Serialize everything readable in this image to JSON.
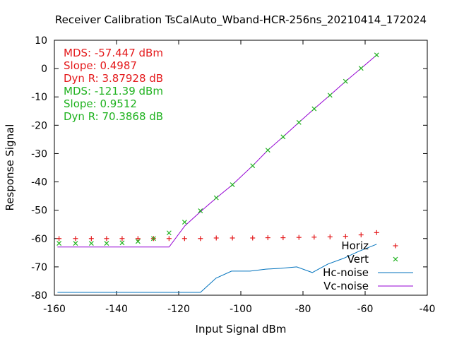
{
  "chart_data": {
    "type": "scatter",
    "title": "Receiver Calibration TsCalAuto_Wband-HCR-256ns_20210414_172024",
    "xlabel": "Input Signal dBm",
    "ylabel": "Response Signal",
    "xlim": [
      -160,
      -40
    ],
    "ylim": [
      -80,
      10
    ],
    "xticks": [
      -160,
      -140,
      -120,
      -100,
      -80,
      -60,
      -40
    ],
    "yticks": [
      -80,
      -70,
      -60,
      -50,
      -40,
      -30,
      -20,
      -10,
      0,
      10
    ],
    "grid": false,
    "legend_position": "bottom-right",
    "annotations": [
      {
        "text": "MDS: -57.447 dBm",
        "color": "#e41a1c"
      },
      {
        "text": "Slope: 0.4987",
        "color": "#e41a1c"
      },
      {
        "text": "Dyn R: 3.87928 dB",
        "color": "#e41a1c"
      },
      {
        "text": "MDS: -121.39 dBm",
        "color": "#1fb21f"
      },
      {
        "text": "Slope: 0.9512",
        "color": "#1fb21f"
      },
      {
        "text": "Dyn R: 70.3868 dB",
        "color": "#1fb21f"
      }
    ],
    "series": [
      {
        "name": "Horiz",
        "kind": "points",
        "marker": "plus",
        "color": "#e41a1c",
        "x": [
          -158.5,
          -153.2,
          -148.1,
          -143.2,
          -138.2,
          -133.1,
          -128.1,
          -123.1,
          -118.1,
          -113.0,
          -107.9,
          -102.7,
          -96.2,
          -91.3,
          -86.4,
          -81.3,
          -76.4,
          -71.3,
          -66.3,
          -61.3,
          -56.3
        ],
        "y": [
          -60.0,
          -60.0,
          -60.0,
          -60.0,
          -60.0,
          -60.0,
          -60.0,
          -60.0,
          -60.0,
          -60.0,
          -59.8,
          -59.8,
          -59.8,
          -59.7,
          -59.7,
          -59.6,
          -59.5,
          -59.4,
          -59.2,
          -58.7,
          -57.9
        ]
      },
      {
        "name": "Vert",
        "kind": "points",
        "marker": "cross",
        "color": "#1fb21f",
        "x": [
          -158.5,
          -153.2,
          -148.1,
          -143.2,
          -138.2,
          -133.1,
          -128.1,
          -123.1,
          -118.1,
          -113.0,
          -107.9,
          -102.7,
          -96.2,
          -91.3,
          -86.4,
          -81.3,
          -76.4,
          -71.3,
          -66.3,
          -61.3,
          -56.3
        ],
        "y": [
          -61.7,
          -61.7,
          -61.7,
          -61.7,
          -61.5,
          -61.0,
          -60.0,
          -58.0,
          -54.2,
          -50.2,
          -45.6,
          -41.0,
          -34.3,
          -28.8,
          -24.1,
          -19.0,
          -14.2,
          -9.4,
          -4.5,
          0.1,
          4.8
        ]
      },
      {
        "name": "Hc-noise",
        "kind": "line",
        "color": "#0072bd",
        "x": [
          -159,
          -146,
          -133,
          -121,
          -113,
          -108,
          -103,
          -97,
          -92,
          -87,
          -82,
          -77,
          -72,
          -67,
          -62,
          -56.3
        ],
        "y": [
          -79,
          -79,
          -79,
          -79,
          -79,
          -74,
          -71.5,
          -71.5,
          -70.8,
          -70.5,
          -70,
          -72,
          -69,
          -67,
          -64.5,
          -62
        ]
      },
      {
        "name": "Vc-noise",
        "kind": "line",
        "color": "#9400d3",
        "x": [
          -159,
          -140,
          -123.1,
          -118,
          -113,
          -107.9,
          -102.7,
          -96.2,
          -91.3,
          -86.4,
          -81.3,
          -76.4,
          -71.3,
          -66.3,
          -61.3,
          -56.3
        ],
        "y": [
          -63,
          -63,
          -63,
          -55.5,
          -50.5,
          -45.7,
          -41,
          -34.3,
          -28.8,
          -24.1,
          -19,
          -14.2,
          -9.4,
          -4.5,
          0.1,
          4.8
        ]
      }
    ]
  }
}
